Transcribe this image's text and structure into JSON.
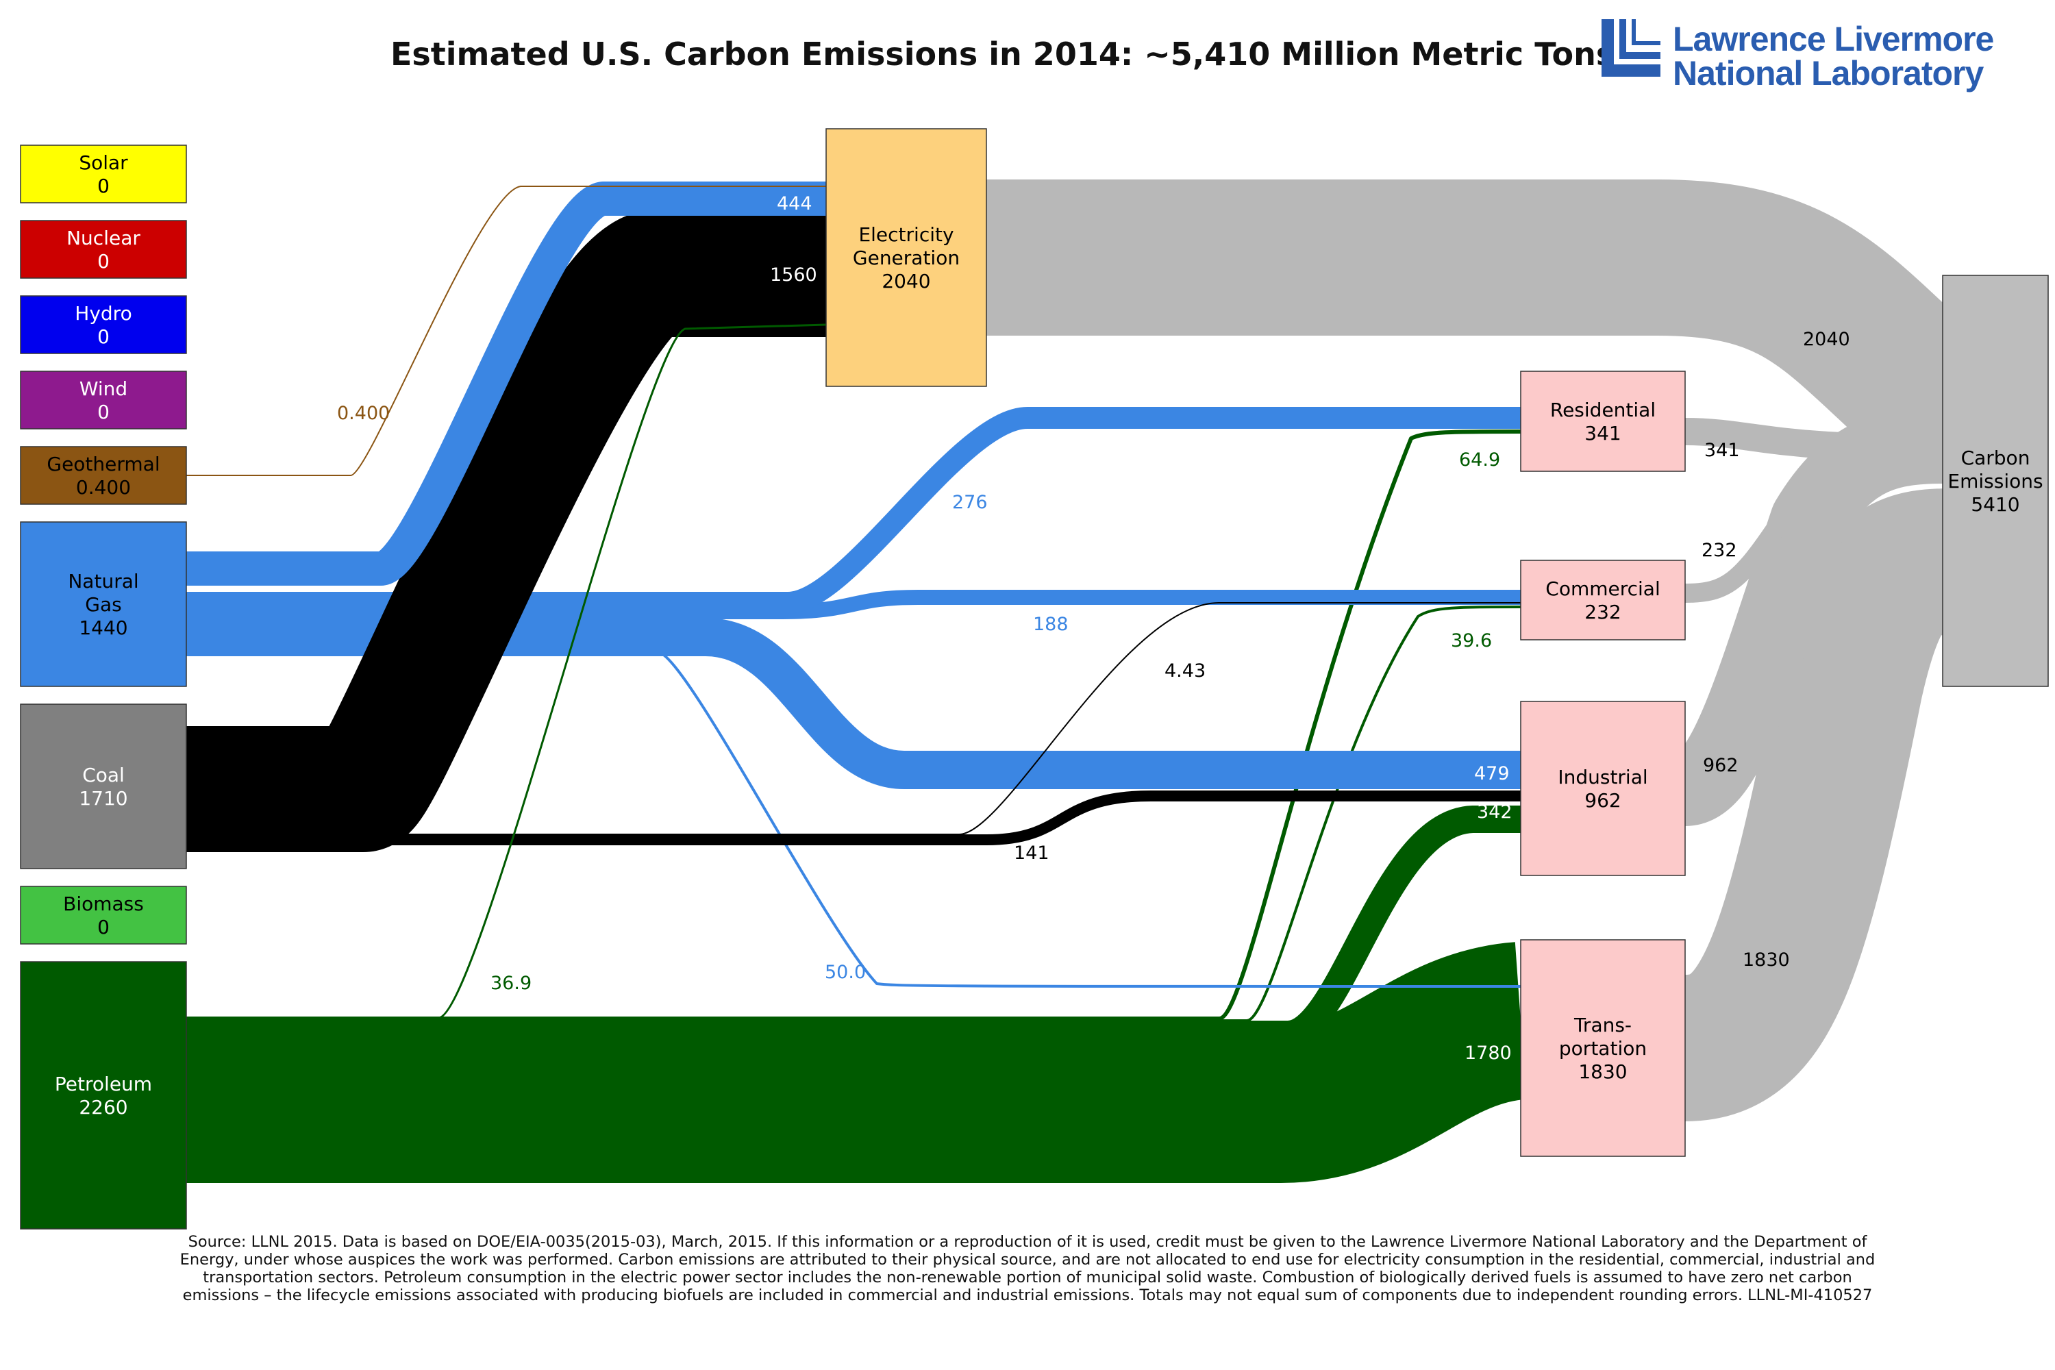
{
  "title": "Estimated U.S. Carbon Emissions in 2014: ~5,410 Million Metric Tons",
  "logo": {
    "line1": "Lawrence Livermore",
    "line2": "National Laboratory",
    "color": "#2a5db0"
  },
  "sources": [
    {
      "id": "solar",
      "name": "Solar",
      "value": "0",
      "color": "#ffff00",
      "text_color": "#000000"
    },
    {
      "id": "nuclear",
      "name": "Nuclear",
      "value": "0",
      "color": "#cc0000",
      "text_color": "#ffffff"
    },
    {
      "id": "hydro",
      "name": "Hydro",
      "value": "0",
      "color": "#0000ee",
      "text_color": "#ffffff"
    },
    {
      "id": "wind",
      "name": "Wind",
      "value": "0",
      "color": "#8e1a8e",
      "text_color": "#ffffff"
    },
    {
      "id": "geothermal",
      "name": "Geothermal",
      "value": "0.400",
      "color": "#8b5513",
      "text_color": "#000000"
    },
    {
      "id": "natural-gas",
      "name": "Natural\nGas",
      "value": "1440",
      "color": "#3b86e3",
      "text_color": "#000000"
    },
    {
      "id": "coal",
      "name": "Coal",
      "value": "1710",
      "color": "#808080",
      "text_color": "#ffffff"
    },
    {
      "id": "biomass",
      "name": "Biomass",
      "value": "0",
      "color": "#43c243",
      "text_color": "#000000"
    },
    {
      "id": "petroleum",
      "name": "Petroleum",
      "value": "2260",
      "color": "#005a00",
      "text_color": "#ffffff"
    }
  ],
  "sectors": [
    {
      "id": "electricity",
      "name": "Electricity\nGeneration",
      "value": "2040",
      "color": "#fdd17d"
    },
    {
      "id": "residential",
      "name": "Residential",
      "value": "341",
      "color": "#fccaca"
    },
    {
      "id": "commercial",
      "name": "Commercial",
      "value": "232",
      "color": "#fccaca"
    },
    {
      "id": "industrial",
      "name": "Industrial",
      "value": "962",
      "color": "#fccaca"
    },
    {
      "id": "transportation",
      "name": "Trans-\nportation",
      "value": "1830",
      "color": "#fccaca"
    },
    {
      "id": "carbon",
      "name": "Carbon\nEmissions",
      "value": "5410",
      "color": "#bdbdbd"
    }
  ],
  "flows": [
    {
      "id": "geothermal-electricity",
      "label": "0.400",
      "color": "#8b5513"
    },
    {
      "id": "gas-electricity",
      "label": "444",
      "color": "#3b86e3"
    },
    {
      "id": "coal-electricity",
      "label": "1560",
      "color": "#000000"
    },
    {
      "id": "petroleum-electricity",
      "label": "36.9",
      "color": "#005a00"
    },
    {
      "id": "gas-residential",
      "label": "276",
      "color": "#3b86e3"
    },
    {
      "id": "gas-commercial",
      "label": "188",
      "color": "#3b86e3"
    },
    {
      "id": "gas-industrial",
      "label": "479",
      "color": "#3b86e3"
    },
    {
      "id": "gas-transportation",
      "label": "50.0",
      "color": "#3b86e3"
    },
    {
      "id": "coal-commercial",
      "label": "4.43",
      "color": "#000000"
    },
    {
      "id": "coal-industrial",
      "label": "141",
      "color": "#000000"
    },
    {
      "id": "petroleum-residential",
      "label": "64.9",
      "color": "#005a00"
    },
    {
      "id": "petroleum-commercial",
      "label": "39.6",
      "color": "#005a00"
    },
    {
      "id": "petroleum-industrial",
      "label": "342",
      "color": "#005a00"
    },
    {
      "id": "petroleum-transportation",
      "label": "1780",
      "color": "#005a00"
    },
    {
      "id": "electricity-carbon",
      "label": "2040",
      "color": "#b8b8b8"
    },
    {
      "id": "residential-carbon",
      "label": "341",
      "color": "#b8b8b8"
    },
    {
      "id": "commercial-carbon",
      "label": "232",
      "color": "#b8b8b8"
    },
    {
      "id": "industrial-carbon",
      "label": "962",
      "color": "#b8b8b8"
    },
    {
      "id": "transportation-carbon",
      "label": "1830",
      "color": "#b8b8b8"
    }
  ],
  "footnote": "Source: LLNL 2015. Data is based on DOE/EIA-0035(2015-03), March, 2015. If this information or a reproduction of it is used, credit must be given to the Lawrence Livermore National Laboratory and the Department of Energy, under whose auspices the work was performed. Carbon emissions are attributed to their physical source, and are not allocated to end use for electricity consumption in the residential, commercial, industrial and transportation sectors.  Petroleum consumption in the electric power sector includes the non-renewable portion of municipal solid waste.  Combustion of biologically derived fuels is assumed to have zero net carbon emissions – the lifecycle emissions associated with producing biofuels are included in commercial and industrial emissions.  Totals may not equal sum of components due to independent rounding errors.  LLNL-MI-410527"
}
